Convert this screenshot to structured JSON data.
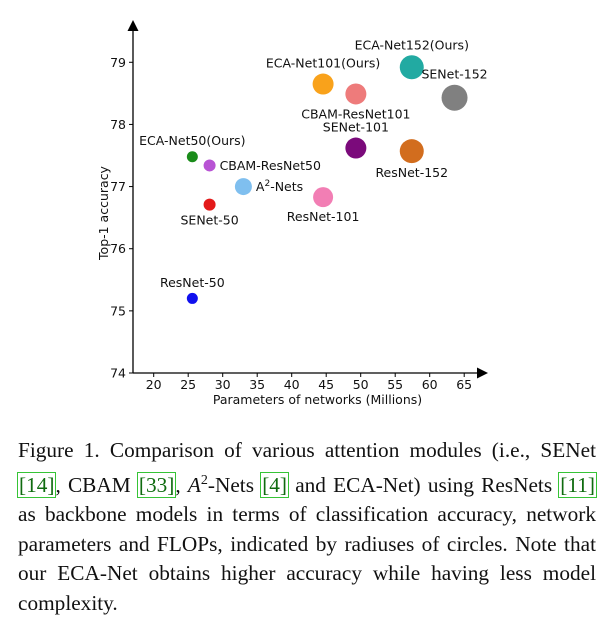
{
  "chart_data": {
    "type": "scatter",
    "title": "",
    "xlabel": "Parameters of networks (Millions)",
    "ylabel": "Top-1 accuracy",
    "xlim": [
      17,
      67
    ],
    "ylim": [
      74,
      79.6
    ],
    "xticks": [
      20,
      25,
      30,
      35,
      40,
      45,
      50,
      55,
      60,
      65
    ],
    "yticks": [
      74,
      75,
      76,
      77,
      78,
      79
    ],
    "size_encoding": "FLOPs (circle radius)",
    "points": [
      {
        "label": "ResNet-50",
        "x": 25.6,
        "y": 75.2,
        "r": 5.5,
        "color": "#1010ee",
        "label_pos": "above"
      },
      {
        "label": "ECA-Net50(Ours)",
        "x": 25.6,
        "y": 77.48,
        "r": 5.5,
        "color": "#1a8c1a",
        "label_pos": "above"
      },
      {
        "label": "CBAM-ResNet50",
        "x": 28.1,
        "y": 77.34,
        "r": 6,
        "color": "#b854d4",
        "label_pos": "right"
      },
      {
        "label": "SENet-50",
        "x": 28.1,
        "y": 76.71,
        "r": 6,
        "color": "#e31a1a",
        "label_pos": "below"
      },
      {
        "label": "A2-Nets",
        "x": 33.0,
        "y": 77.0,
        "r": 8.5,
        "color": "#7fbfef",
        "label_pos": "right"
      },
      {
        "label": "ResNet-101",
        "x": 44.55,
        "y": 76.83,
        "r": 10,
        "color": "#f27eb4",
        "label_pos": "below"
      },
      {
        "label": "ECA-Net101(Ours)",
        "x": 44.55,
        "y": 78.65,
        "r": 10.5,
        "color": "#f9a21b",
        "label_pos": "above"
      },
      {
        "label": "CBAM-ResNet101",
        "x": 49.3,
        "y": 78.49,
        "r": 10.5,
        "color": "#ee7b7b",
        "label_pos": "below"
      },
      {
        "label": "SENet-101",
        "x": 49.3,
        "y": 77.62,
        "r": 10.5,
        "color": "#7b0a7b",
        "label_pos": "above"
      },
      {
        "label": "ECA-Net152(Ours)",
        "x": 57.4,
        "y": 78.92,
        "r": 12,
        "color": "#22aaa2",
        "label_pos": "above"
      },
      {
        "label": "ResNet-152",
        "x": 57.4,
        "y": 77.57,
        "r": 12,
        "color": "#d26d1e",
        "label_pos": "below"
      },
      {
        "label": "SENet-152",
        "x": 63.6,
        "y": 78.43,
        "r": 13,
        "color": "#808080",
        "label_pos": "above"
      }
    ]
  },
  "caption": {
    "p1": "Figure 1. Comparison of various attention modules (i.e., SENet ",
    "c1": "[14]",
    "p2": ", CBAM ",
    "c2": "[33]",
    "p3": ", ",
    "a2": "A",
    "a2sup": "2",
    "p4": "-Nets ",
    "c3": "[4]",
    "p5": " and ECA-Net) using ResNets ",
    "c4": "[11]",
    "p6": " as backbone models in terms of classification accuracy, network parameters and FLOPs, indicated by radiuses of circles. Note that our ECA-Net obtains higher accuracy while having less model complexity."
  }
}
